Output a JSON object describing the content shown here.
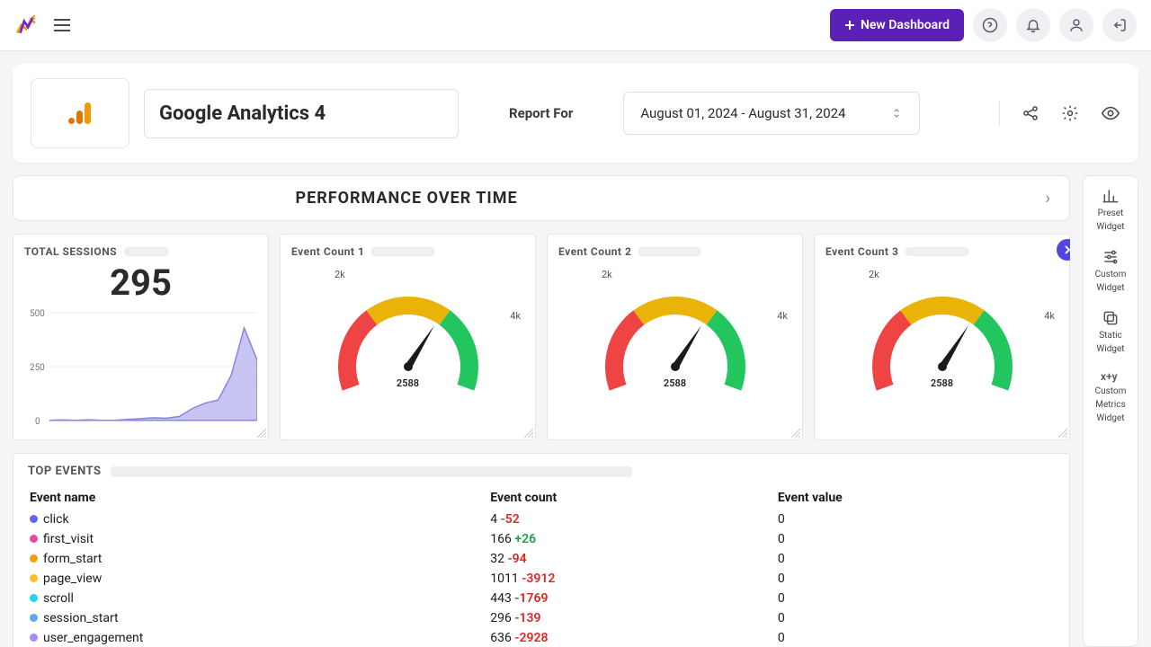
{
  "topbar": {
    "new_dashboard_label": "New Dashboard"
  },
  "header": {
    "title": "Google Analytics 4",
    "report_for_label": "Report For",
    "date_range": "August 01, 2024 - August 31, 2024"
  },
  "section": {
    "performance_title": "PERFORMANCE OVER TIME"
  },
  "widgets": {
    "sessions": {
      "title": "TOTAL SESSIONS",
      "value": "295",
      "chart": {
        "type": "area",
        "color_fill": "#c7c5f2",
        "color_stroke": "#8a84e6",
        "y_ticks": [
          "500",
          "250",
          "0"
        ],
        "ylim": [
          0,
          500
        ],
        "points": [
          0,
          2,
          0,
          3,
          0,
          0,
          4,
          8,
          12,
          10,
          18,
          55,
          80,
          95,
          210,
          430,
          280
        ]
      }
    },
    "event1": {
      "title": "Event Count 1",
      "gauge_value": "2588",
      "label_lo": "2k",
      "label_hi": "4k"
    },
    "event2": {
      "title": "Event Count 2",
      "gauge_value": "2588",
      "label_lo": "2k",
      "label_hi": "4k"
    },
    "event3": {
      "title": "Event Count 3",
      "gauge_value": "2588",
      "label_lo": "2k",
      "label_hi": "4k"
    },
    "gauge_style": {
      "colors": {
        "red": "#ef4444",
        "yellow": "#eab308",
        "green": "#22c55e",
        "needle": "#1a1a1a"
      },
      "range": [
        0,
        4000
      ],
      "segments": [
        [
          0,
          1333
        ],
        [
          1333,
          2666
        ],
        [
          2666,
          4000
        ]
      ],
      "value_num": 2588
    }
  },
  "top_events": {
    "title": "TOP EVENTS",
    "columns": [
      "Event name",
      "Event count",
      "Event value"
    ],
    "rows": [
      {
        "dot": "#6366f1",
        "name": "click",
        "count": "4",
        "delta": "-52",
        "dir": "down",
        "value": "0"
      },
      {
        "dot": "#ec4899",
        "name": "first_visit",
        "count": "166",
        "delta": "+26",
        "dir": "up",
        "value": "0"
      },
      {
        "dot": "#f59e0b",
        "name": "form_start",
        "count": "32",
        "delta": "-94",
        "dir": "down",
        "value": "0"
      },
      {
        "dot": "#fbbf24",
        "name": "page_view",
        "count": "1011",
        "delta": "-3912",
        "dir": "down",
        "value": "0"
      },
      {
        "dot": "#22d3ee",
        "name": "scroll",
        "count": "443",
        "delta": "-1769",
        "dir": "down",
        "value": "0"
      },
      {
        "dot": "#60a5fa",
        "name": "session_start",
        "count": "296",
        "delta": "-139",
        "dir": "down",
        "value": "0"
      },
      {
        "dot": "#a78bfa",
        "name": "user_engagement",
        "count": "636",
        "delta": "-2928",
        "dir": "down",
        "value": "0"
      }
    ]
  },
  "sidebar": {
    "items": [
      {
        "l1": "Preset",
        "l2": "Widget"
      },
      {
        "l1": "Custom",
        "l2": "Widget"
      },
      {
        "l1": "Static",
        "l2": "Widget"
      },
      {
        "l1": "Custom",
        "l2": "Metrics",
        "l3": "Widget"
      }
    ]
  },
  "colors": {
    "primary": "#5b21b6",
    "scroll_btn": "#4f46e5",
    "background": "#f5f5f7"
  }
}
